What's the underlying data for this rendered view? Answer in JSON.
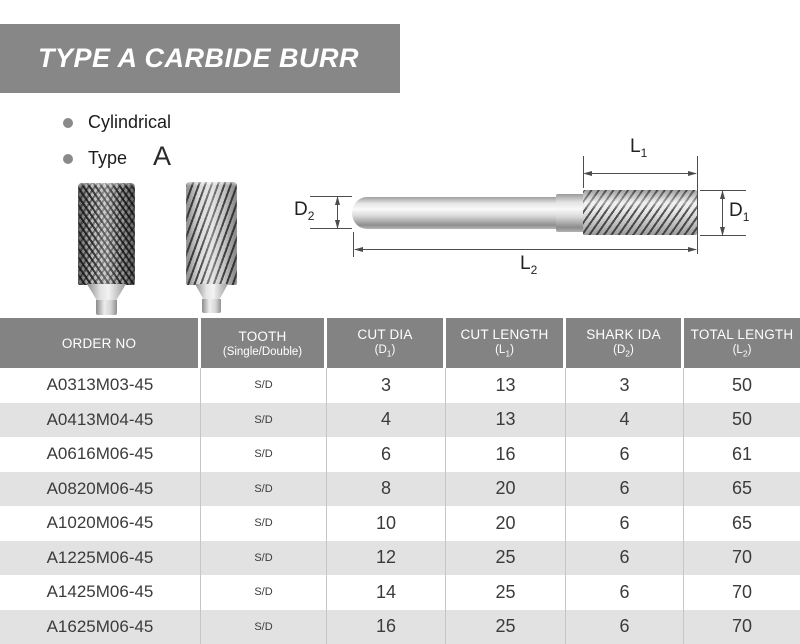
{
  "banner": {
    "title": "TYPE A CARBIDE BURR"
  },
  "bullets": {
    "item1": "Cylindrical",
    "item2_label": "Type",
    "item2_value": "A"
  },
  "images": {
    "left_burr": "double-cut-cylindrical-burr-photo",
    "right_burr": "single-cut-cylindrical-burr-photo"
  },
  "diagram": {
    "labels": {
      "l1": {
        "main": "L",
        "sub": "1"
      },
      "l2": {
        "main": "L",
        "sub": "2"
      },
      "d1": {
        "main": "D",
        "sub": "1"
      },
      "d2": {
        "main": "D",
        "sub": "2"
      }
    }
  },
  "table": {
    "columns": [
      {
        "title": "ORDER NO"
      },
      {
        "title": "TOOTH",
        "subtitle": "(Single/Double)"
      },
      {
        "title": "CUT DIA",
        "dim": {
          "pre": "(D",
          "sub": "1",
          "post": ")"
        }
      },
      {
        "title": "CUT LENGTH",
        "dim": {
          "pre": "(L",
          "sub": "1",
          "post": ")"
        }
      },
      {
        "title": "SHARK IDA",
        "dim": {
          "pre": "(D",
          "sub": "2",
          "post": ")"
        }
      },
      {
        "title": "TOTAL LENGTH",
        "dim": {
          "pre": "(L",
          "sub": "2",
          "post": ")"
        }
      }
    ],
    "rows": [
      [
        "A0313M03-45",
        "S/D",
        "3",
        "13",
        "3",
        "50"
      ],
      [
        "A0413M04-45",
        "S/D",
        "4",
        "13",
        "4",
        "50"
      ],
      [
        "A0616M06-45",
        "S/D",
        "6",
        "16",
        "6",
        "61"
      ],
      [
        "A0820M06-45",
        "S/D",
        "8",
        "20",
        "6",
        "65"
      ],
      [
        "A1020M06-45",
        "S/D",
        "10",
        "20",
        "6",
        "65"
      ],
      [
        "A1225M06-45",
        "S/D",
        "12",
        "25",
        "6",
        "70"
      ],
      [
        "A1425M06-45",
        "S/D",
        "14",
        "25",
        "6",
        "70"
      ],
      [
        "A1625M06-45",
        "S/D",
        "16",
        "25",
        "6",
        "70"
      ]
    ]
  },
  "colors": {
    "banner_gray": "#878787",
    "header_gray": "#838383",
    "row_alt_gray": "#e2e2e2",
    "separator_gray": "#c6c6c6"
  }
}
